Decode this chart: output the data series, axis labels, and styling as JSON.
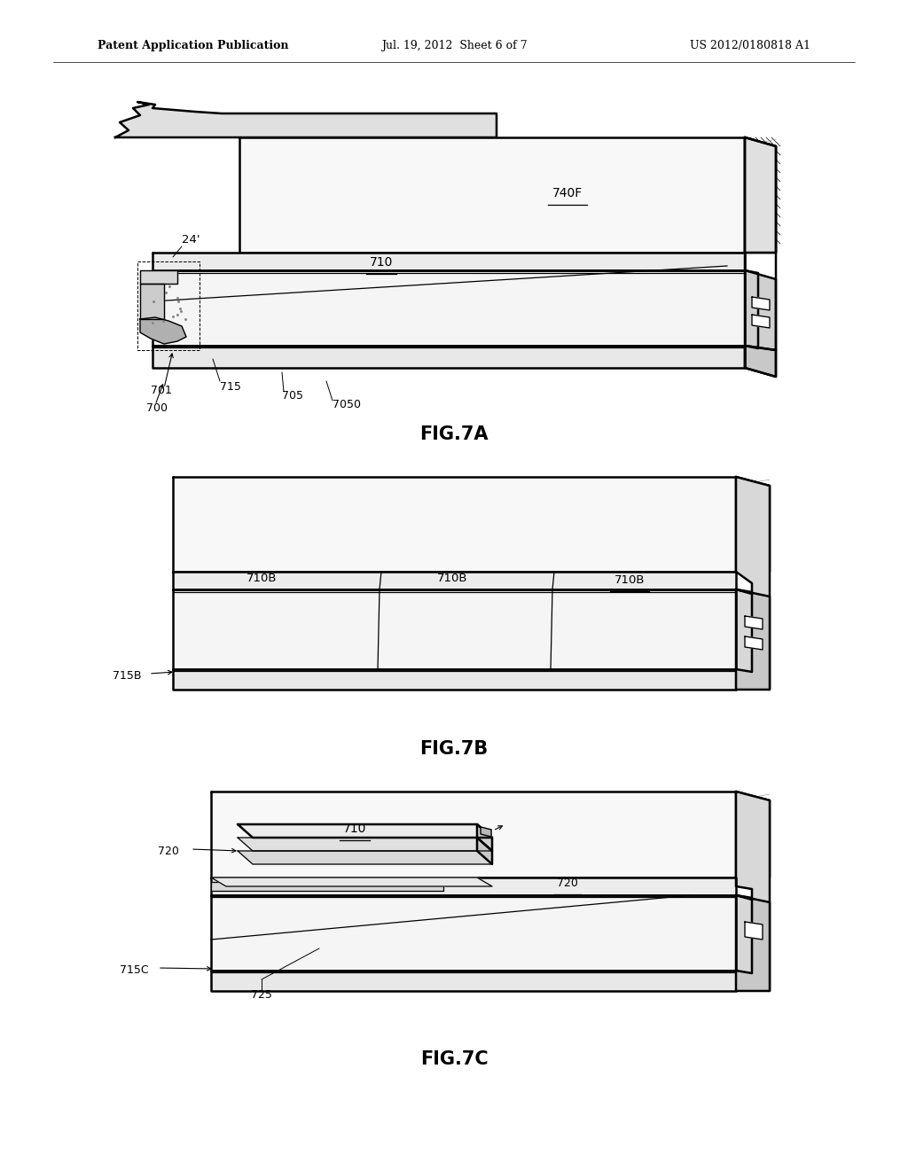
{
  "bg_color": "#ffffff",
  "line_color": "#000000",
  "header_left": "Patent Application Publication",
  "header_center": "Jul. 19, 2012  Sheet 6 of 7",
  "header_right": "US 2012/0180818 A1",
  "fig7a_label": "FIG.7A",
  "fig7b_label": "FIG.7B",
  "fig7c_label": "FIG.7C",
  "lw_main": 1.8,
  "lw_thin": 0.9,
  "lw_light": 0.6,
  "fill_light": "#f5f5f5",
  "fill_mid": "#e8e8e8",
  "fill_dark": "#d8d8d8",
  "fill_side": "#c8c8c8"
}
